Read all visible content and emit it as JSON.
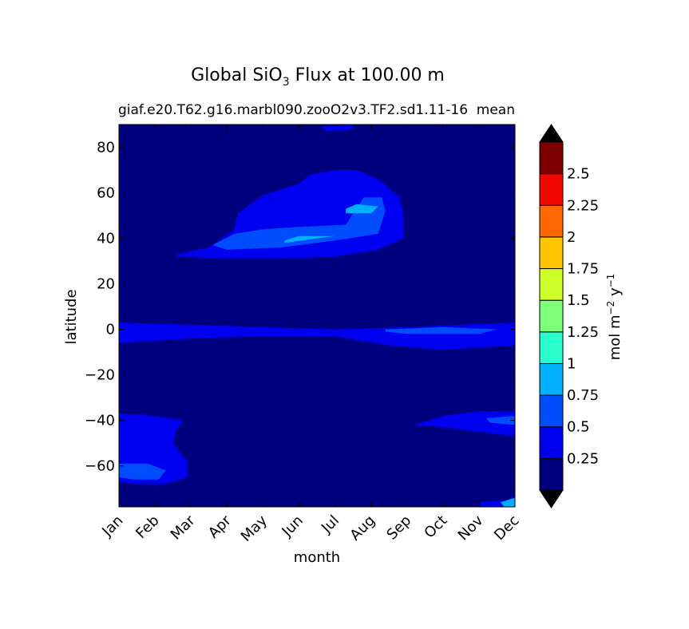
{
  "chart_data": {
    "type": "contourf",
    "title": "Global SiO",
    "title_subscript": "3",
    "title_suffix": " Flux at 100.00 m",
    "subtitle_left": "giaf.e20.T62.g16.marbl090.zooO2v3.TF2.sd1.11-16",
    "subtitle_right": "mean",
    "xlabel": "month",
    "ylabel": "latitude",
    "x_categories": [
      "Jan",
      "Feb",
      "Mar",
      "Apr",
      "May",
      "Jun",
      "Jul",
      "Aug",
      "Sep",
      "Oct",
      "Nov",
      "Dec"
    ],
    "y_ticks": [
      80,
      60,
      40,
      20,
      0,
      -20,
      -40,
      -60
    ],
    "ylim": [
      -78,
      90
    ],
    "xlim": [
      0,
      11
    ],
    "colorbar": {
      "label_main": "mol m",
      "label_exp1": "−2",
      "label_mid": " y",
      "label_exp2": "−1",
      "levels": [
        0,
        0.25,
        0.5,
        0.75,
        1,
        1.25,
        1.5,
        1.75,
        2,
        2.25,
        2.5,
        2.75
      ],
      "tick_labels": [
        "0.25",
        "0.5",
        "0.75",
        "1",
        "1.25",
        "1.5",
        "1.75",
        "2",
        "2.25",
        "2.5"
      ],
      "colors": [
        "#00007f",
        "#0000f1",
        "#004cff",
        "#00b0ff",
        "#29ffce",
        "#7dff7a",
        "#ceff29",
        "#ffc400",
        "#ff6800",
        "#f10700",
        "#7f0000"
      ],
      "extend_low_color": "#000000",
      "extend_high_color": "#000000"
    },
    "regions": [
      {
        "level": 1,
        "desc": "NH spring-summer bloom",
        "points": [
          [
            1.6,
            33
          ],
          [
            2.5,
            36
          ],
          [
            3.2,
            44
          ],
          [
            3.3,
            51
          ],
          [
            4.0,
            59
          ],
          [
            5.0,
            64
          ],
          [
            5.3,
            68
          ],
          [
            6.0,
            70
          ],
          [
            6.6,
            70
          ],
          [
            7.2,
            66
          ],
          [
            7.8,
            58
          ],
          [
            7.9,
            50
          ],
          [
            7.9,
            40
          ],
          [
            7.2,
            35
          ],
          [
            6.0,
            32
          ],
          [
            4.5,
            31
          ],
          [
            3.0,
            31
          ],
          [
            1.6,
            32
          ]
        ]
      },
      {
        "level": 2,
        "desc": "NH bloom core",
        "points": [
          [
            2.6,
            37
          ],
          [
            3.2,
            42
          ],
          [
            4.0,
            44
          ],
          [
            5.0,
            45
          ],
          [
            6.3,
            46
          ],
          [
            6.8,
            58
          ],
          [
            7.3,
            58
          ],
          [
            7.4,
            52
          ],
          [
            7.2,
            42
          ],
          [
            6.0,
            39
          ],
          [
            4.5,
            36
          ],
          [
            3.0,
            35
          ]
        ]
      },
      {
        "level": 3,
        "desc": "NH bloom peak",
        "points": [
          [
            6.3,
            51
          ],
          [
            7.0,
            51
          ],
          [
            7.2,
            54
          ],
          [
            6.6,
            55
          ],
          [
            6.3,
            53
          ]
        ]
      },
      {
        "level": 3,
        "desc": "NH bloom streak",
        "points": [
          [
            4.6,
            38
          ],
          [
            5.5,
            40
          ],
          [
            6.0,
            41
          ],
          [
            5.0,
            41
          ],
          [
            4.6,
            39
          ]
        ]
      },
      {
        "level": 1,
        "desc": "equatorial band",
        "points": [
          [
            0,
            3
          ],
          [
            2,
            2
          ],
          [
            4,
            1
          ],
          [
            6,
            0
          ],
          [
            8,
            1
          ],
          [
            9.5,
            2
          ],
          [
            11,
            3
          ],
          [
            11,
            -7
          ],
          [
            10,
            -8
          ],
          [
            9,
            -9
          ],
          [
            7.5,
            -7
          ],
          [
            6,
            -3
          ],
          [
            4,
            -3
          ],
          [
            2,
            -4
          ],
          [
            0,
            -6
          ]
        ]
      },
      {
        "level": 2,
        "desc": "equatorial autumn core",
        "points": [
          [
            7.4,
            0
          ],
          [
            9.0,
            1
          ],
          [
            10.5,
            0
          ],
          [
            10.0,
            -2
          ],
          [
            8.0,
            -2
          ],
          [
            7.4,
            -1
          ]
        ]
      },
      {
        "level": 1,
        "desc": "SH summer early year",
        "points": [
          [
            0,
            -37
          ],
          [
            1.0,
            -38
          ],
          [
            1.8,
            -40
          ],
          [
            1.6,
            -44
          ],
          [
            1.5,
            -50
          ],
          [
            1.9,
            -58
          ],
          [
            1.9,
            -65
          ],
          [
            1.3,
            -68
          ],
          [
            0.5,
            -68
          ],
          [
            0,
            -67
          ]
        ]
      },
      {
        "level": 2,
        "desc": "SH summer core",
        "points": [
          [
            0,
            -59
          ],
          [
            0.8,
            -59
          ],
          [
            1.3,
            -62
          ],
          [
            1.1,
            -66
          ],
          [
            0.4,
            -66
          ],
          [
            0,
            -65
          ]
        ]
      },
      {
        "level": 1,
        "desc": "SH summer late year",
        "points": [
          [
            8.2,
            -42
          ],
          [
            9.0,
            -38
          ],
          [
            10.0,
            -36
          ],
          [
            11,
            -36
          ],
          [
            11,
            -47
          ],
          [
            10.0,
            -45
          ],
          [
            9.0,
            -43
          ]
        ]
      },
      {
        "level": 2,
        "desc": "SH summer late core",
        "points": [
          [
            10.2,
            -39
          ],
          [
            11,
            -38
          ],
          [
            11,
            -42
          ],
          [
            10.3,
            -41
          ]
        ]
      },
      {
        "level": 1,
        "desc": "high north",
        "points": [
          [
            5.6,
            89
          ],
          [
            6.5,
            90
          ],
          [
            6.5,
            88
          ],
          [
            5.8,
            87
          ]
        ]
      },
      {
        "level": 1,
        "desc": "Antarctic margin",
        "points": [
          [
            10.0,
            -76
          ],
          [
            10.8,
            -75
          ],
          [
            11,
            -73
          ],
          [
            11,
            -78
          ],
          [
            10.0,
            -78
          ]
        ]
      },
      {
        "level": 3,
        "desc": "Antarctic margin core",
        "points": [
          [
            10.6,
            -76
          ],
          [
            11,
            -74
          ],
          [
            11,
            -78
          ],
          [
            10.7,
            -78
          ]
        ]
      }
    ]
  }
}
